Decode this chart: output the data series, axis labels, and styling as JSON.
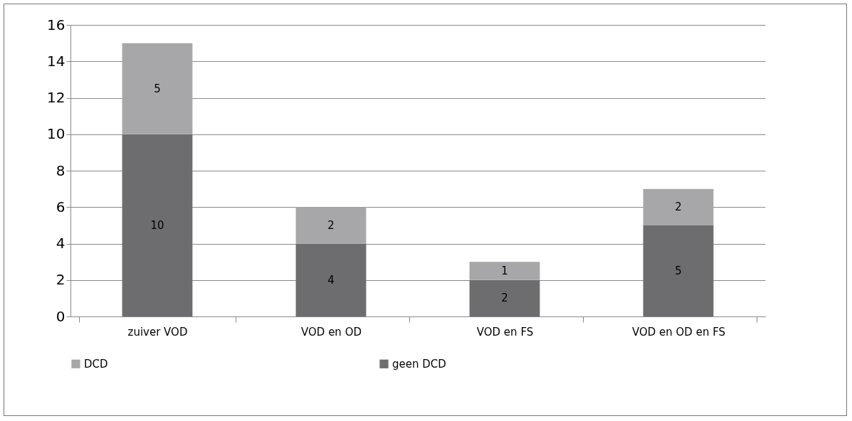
{
  "chart_data": {
    "type": "bar",
    "stacked": true,
    "categories": [
      "zuiver VOD",
      "VOD en OD",
      "VOD en FS",
      "VOD en OD en FS"
    ],
    "series": [
      {
        "name": "geen DCD",
        "color": "#6d6d6f",
        "values": [
          10,
          4,
          2,
          5
        ]
      },
      {
        "name": "DCD",
        "color": "#a7a7a9",
        "values": [
          5,
          2,
          1,
          2
        ]
      }
    ],
    "ylim": [
      0,
      16
    ],
    "yticks": [
      0,
      2,
      4,
      6,
      8,
      10,
      12,
      14,
      16
    ],
    "grid": "y",
    "legend": "bottom",
    "data_labels": true
  }
}
